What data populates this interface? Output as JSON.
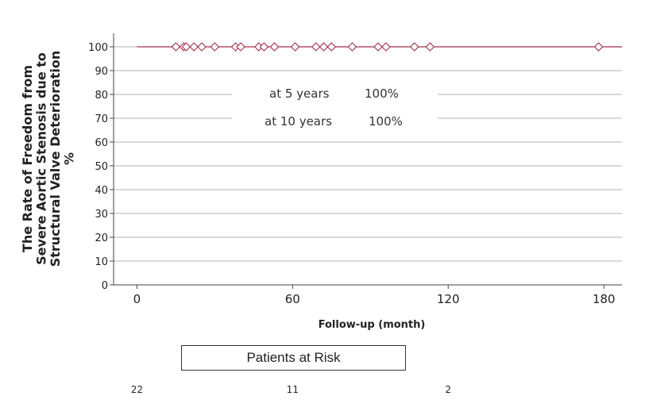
{
  "chart_data": {
    "type": "line",
    "title": "",
    "ylabel_lines": [
      "The Rate of Freedom from",
      "Severe Aortic Stenosis due to",
      "Structural Valve Deterioration",
      "%"
    ],
    "xlabel": "Follow-up (month)",
    "xlim": [
      -9,
      187
    ],
    "ylim": [
      0,
      105
    ],
    "xticks": [
      0,
      60,
      120,
      180
    ],
    "yticks": [
      0,
      10,
      20,
      30,
      40,
      50,
      60,
      70,
      80,
      90,
      100
    ],
    "grid": "horizontal",
    "series": [
      {
        "name": "",
        "color": "#a0304a",
        "x": [
          0,
          187
        ],
        "y": [
          100,
          100
        ],
        "censored_x": [
          15,
          18,
          19,
          22,
          25,
          30,
          38,
          40,
          47,
          49,
          53,
          61,
          69,
          72,
          75,
          83,
          93,
          96,
          107,
          113,
          178
        ],
        "censored_y": 100
      }
    ],
    "annotations": [
      {
        "label": "at 5 years",
        "value": "100%"
      },
      {
        "label": "at 10 years",
        "value": "100%"
      }
    ]
  },
  "risk_table": {
    "title": "Patients at Risk",
    "values": [
      {
        "x": 0,
        "count": "22"
      },
      {
        "x": 60,
        "count": "11"
      },
      {
        "x": 120,
        "count": "2"
      }
    ]
  }
}
